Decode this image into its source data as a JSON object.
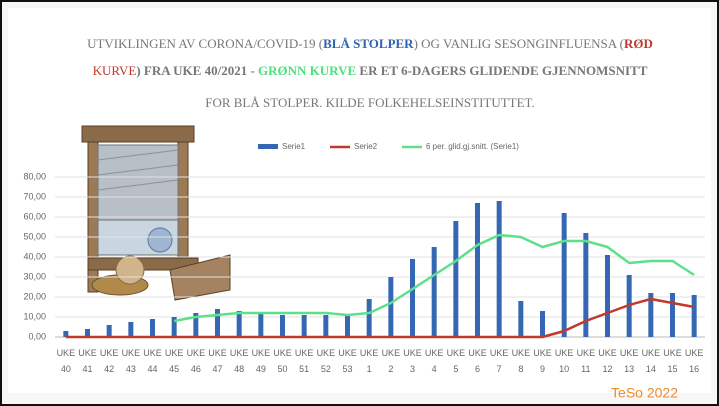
{
  "chart_data": {
    "type": "bar",
    "title_lines": [
      [
        {
          "text": "UTVIKLINGEN AV CORONA/COVID-19 (",
          "color": "#777777"
        },
        {
          "text": "BLÅ STOLPER",
          "color": "#2f63b3"
        },
        {
          "text": ") OG VANLIG SESONGINFLUENSA (",
          "color": "#777777"
        },
        {
          "text": "RØD",
          "color": "#c0392b"
        },
        {
          "text": "",
          "color": "#777777"
        }
      ],
      [
        {
          "text": "KURVE",
          "color": "#c0392b"
        },
        {
          "text": ") FRA UKE 40/2021 - ",
          "color": "#777777"
        },
        {
          "text": "GRØNN KURVE",
          "color": "#4fe07e"
        },
        {
          "text": " ER ET 6-DAGERS GLIDENDE GJENNOMSNITT",
          "color": "#777777"
        }
      ],
      [
        {
          "text": "FOR BLÅ STOLPER. KILDE FOLKEHELSEINSTITUTTET.",
          "color": "#777777"
        }
      ]
    ],
    "categories": [
      "UKE 40",
      "UKE 41",
      "UKE 42",
      "UKE 43",
      "UKE 44",
      "UKE 45",
      "UKE 46",
      "UKE 47",
      "UKE 48",
      "UKE 49",
      "UKE 50",
      "UKE 51",
      "UKE 52",
      "UKE 53",
      "UKE 1",
      "UKE 2",
      "UKE 3",
      "UKE 4",
      "UKE 5",
      "UKE 6",
      "UKE 7",
      "UKE 8",
      "UKE 9",
      "UKE 10",
      "UKE 11",
      "UKE 12",
      "UKE 13",
      "UKE 14",
      "UKE 15",
      "UKE 16"
    ],
    "series": [
      {
        "name": "Serie1",
        "type": "bar",
        "color": "#3568b4",
        "values": [
          3,
          4,
          6,
          7.5,
          9,
          10,
          12,
          14,
          13,
          12,
          11,
          11,
          11,
          11,
          19,
          30,
          39,
          45,
          58,
          67,
          68,
          18,
          13,
          62,
          52,
          41,
          31,
          22,
          22,
          21
        ]
      },
      {
        "name": "Serie2",
        "type": "line",
        "color": "#c0392b",
        "values": [
          0,
          0,
          0,
          0,
          0,
          0,
          0,
          0,
          0,
          0,
          0,
          0,
          0,
          0,
          0,
          0,
          0,
          0,
          0,
          0,
          0,
          0,
          0,
          3,
          8,
          12,
          16,
          19,
          17,
          15
        ]
      },
      {
        "name": "6 per. glid.gj.snitt. (Serie1)",
        "type": "line",
        "color": "#5ee08a",
        "values": [
          null,
          null,
          null,
          null,
          null,
          8,
          10,
          11,
          12,
          12,
          12,
          12,
          12,
          11,
          12,
          17,
          24,
          31,
          38,
          46,
          51,
          50,
          45,
          48,
          48,
          45,
          37,
          38,
          38,
          31
        ]
      }
    ],
    "ylim": [
      0,
      80
    ],
    "yticks": [
      {
        "value": 0,
        "label": "0,00"
      },
      {
        "value": 10,
        "label": "10,00"
      },
      {
        "value": 20,
        "label": "20,00"
      },
      {
        "value": 30,
        "label": "30,00"
      },
      {
        "value": 40,
        "label": "40,00"
      },
      {
        "value": 50,
        "label": "50,00"
      },
      {
        "value": 60,
        "label": "60,00"
      },
      {
        "value": 70,
        "label": "70,00"
      },
      {
        "value": 80,
        "label": "80,00"
      }
    ],
    "grid": true,
    "watermark": "TeSo 2022"
  }
}
